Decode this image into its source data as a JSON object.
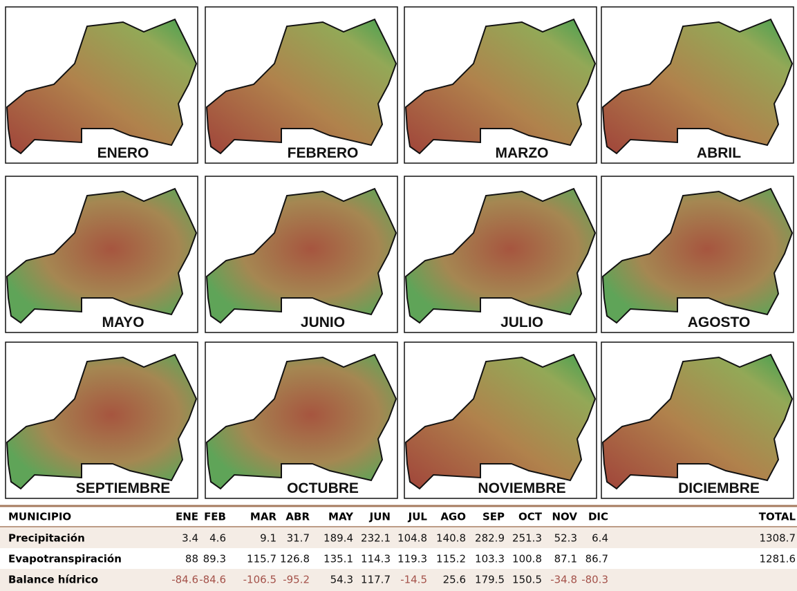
{
  "maps": [
    {
      "label": "ENERO"
    },
    {
      "label": "FEBRERO"
    },
    {
      "label": "MARZO"
    },
    {
      "label": "ABRIL"
    },
    {
      "label": "MAYO"
    },
    {
      "label": "JUNIO"
    },
    {
      "label": "JULIO"
    },
    {
      "label": "AGOSTO"
    },
    {
      "label": "SEPTIEMBRE"
    },
    {
      "label": "OCTUBRE"
    },
    {
      "label": "NOVIEMBRE"
    },
    {
      "label": "DICIEMBRE"
    }
  ],
  "table": {
    "header": [
      "MUNICIPIO",
      "ENE",
      "FEB",
      "MAR",
      "ABR",
      "MAY",
      "JUN",
      "JUL",
      "AGO",
      "SEP",
      "OCT",
      "NOV",
      "DIC",
      "TOTAL"
    ],
    "rows": [
      {
        "label": "Precipitación",
        "values": [
          3.4,
          4.6,
          9.1,
          31.7,
          189.4,
          232.1,
          104.8,
          140.8,
          282.9,
          251.3,
          52.3,
          6.4,
          1308.7
        ]
      },
      {
        "label": "Evapotranspiración",
        "values": [
          88,
          89.3,
          115.7,
          126.8,
          135.1,
          114.3,
          119.3,
          115.2,
          103.3,
          100.8,
          87.1,
          86.7,
          1281.6
        ]
      },
      {
        "label": "Balance hídrico",
        "values": [
          -84.6,
          -84.6,
          -106.5,
          -95.2,
          54.3,
          117.7,
          -14.5,
          25.6,
          179.5,
          150.5,
          -34.8,
          -80.3
        ]
      }
    ]
  }
}
